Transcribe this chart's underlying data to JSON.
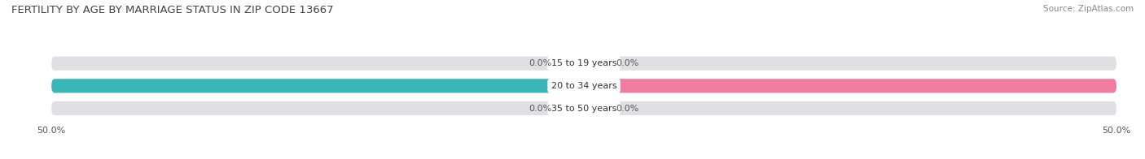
{
  "title": "FERTILITY BY AGE BY MARRIAGE STATUS IN ZIP CODE 13667",
  "source": "Source: ZipAtlas.com",
  "categories": [
    "15 to 19 years",
    "20 to 34 years",
    "35 to 50 years"
  ],
  "married_values": [
    0.0,
    50.0,
    0.0
  ],
  "unmarried_values": [
    0.0,
    50.0,
    0.0
  ],
  "married_color": "#3ab5b8",
  "unmarried_color": "#f07ca0",
  "bar_bg_color": "#e0e0e4",
  "bar_height": 0.62,
  "xlim": [
    -50,
    50
  ],
  "title_fontsize": 9.5,
  "source_fontsize": 7.5,
  "label_fontsize": 8,
  "category_fontsize": 8,
  "tick_fontsize": 8,
  "background_color": "#ffffff",
  "left_tick_label": "50.0%",
  "right_tick_label": "50.0%"
}
